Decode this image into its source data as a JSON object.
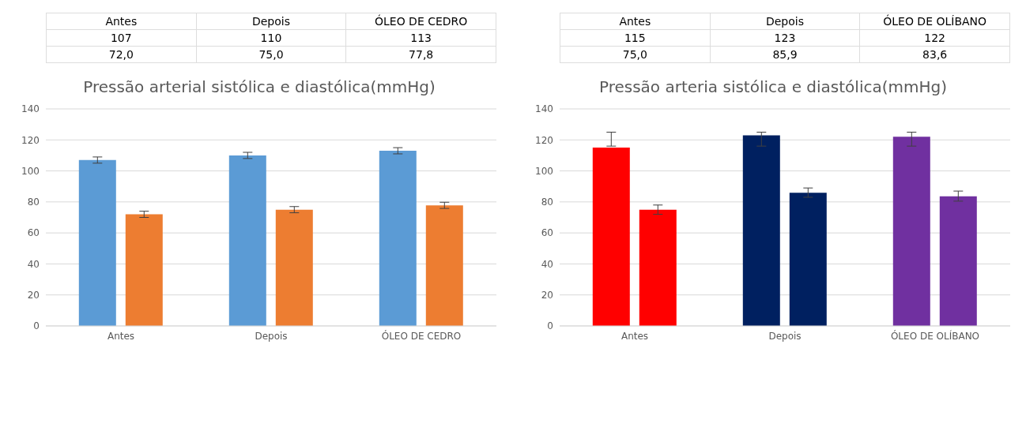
{
  "chart_data": [
    {
      "type": "bar",
      "title": "Pressão arterial sistólica e diastólica(mmHg)",
      "categories": [
        "Antes",
        "Depois",
        "ÓLEO DE CEDRO"
      ],
      "series": [
        {
          "color": "#5b9bd5",
          "values": [
            107,
            110,
            113
          ],
          "value_labels": [
            "107",
            "110",
            "113"
          ],
          "errors": [
            2,
            2,
            2
          ]
        },
        {
          "color": "#ed7d31",
          "values": [
            72.0,
            75.0,
            77.8
          ],
          "value_labels": [
            "72,0",
            "75,0",
            "77,8"
          ],
          "errors": [
            2,
            2,
            2
          ]
        }
      ],
      "ylim": [
        0,
        140
      ],
      "yticks": [
        0,
        20,
        40,
        60,
        80,
        100,
        120,
        140
      ],
      "grid": "y",
      "legend": false
    },
    {
      "type": "bar",
      "title": "Pressão arteria sistólica e diastólica(mmHg)",
      "categories": [
        "Antes",
        "Depois",
        "ÓLEO DE OLÍBANO"
      ],
      "series": [
        {
          "colors": [
            "#ff0000",
            "#002060",
            "#7030a0"
          ],
          "values": [
            115,
            123,
            122
          ],
          "value_labels": [
            "115",
            "123",
            "122"
          ],
          "errors": [
            [
              116,
              125
            ],
            [
              116,
              125
            ],
            [
              116,
              125
            ]
          ]
        },
        {
          "colors": [
            "#ff0000",
            "#002060",
            "#7030a0"
          ],
          "values": [
            75.0,
            85.9,
            83.6
          ],
          "value_labels": [
            "75,0",
            "85,9",
            "83,6"
          ],
          "errors": [
            [
              72,
              78
            ],
            [
              83,
              89
            ],
            [
              80.5,
              87
            ]
          ]
        }
      ],
      "ylim": [
        0,
        140
      ],
      "yticks": [
        0,
        20,
        40,
        60,
        80,
        100,
        120,
        140
      ],
      "grid": "y",
      "legend": false
    }
  ]
}
